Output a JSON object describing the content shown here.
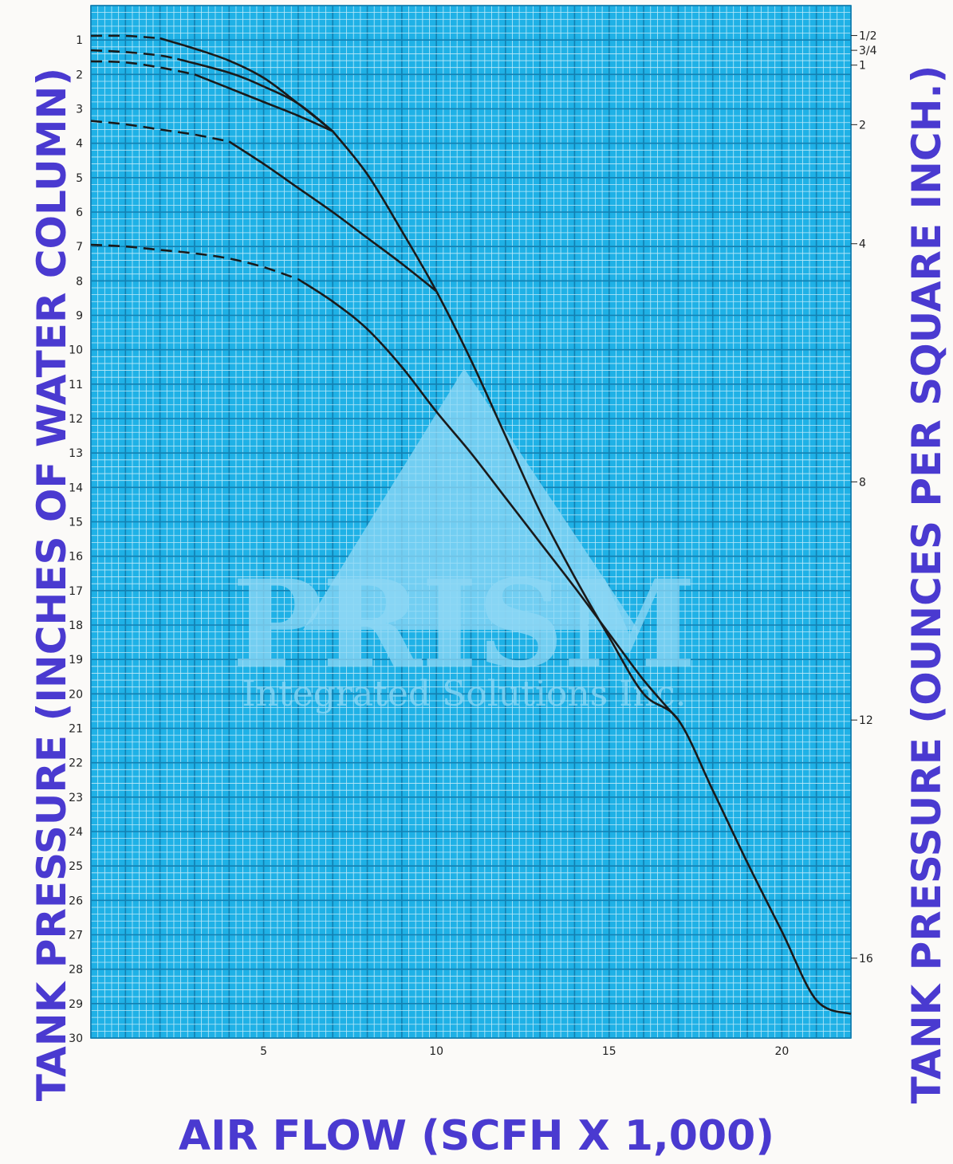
{
  "chart_data": {
    "type": "line",
    "xlabel": "AIR FLOW (SCFH X 1,000)",
    "ylabel_left": "TANK PRESSURE (INCHES OF WATER COLUMN)",
    "ylabel_right": "TANK PRESSURE (OUNCES PER SQUARE INCH.)",
    "xlim": [
      0,
      22
    ],
    "ylim_left": [
      0,
      30
    ],
    "y_inverted": true,
    "grid": true,
    "x_ticks": [
      5,
      10,
      15,
      20
    ],
    "y_ticks_left": [
      1,
      2,
      3,
      4,
      5,
      6,
      7,
      8,
      9,
      10,
      11,
      12,
      13,
      14,
      15,
      16,
      17,
      18,
      19,
      20,
      21,
      22,
      23,
      24,
      25,
      26,
      27,
      28,
      29,
      30
    ],
    "y_ticks_right": [
      {
        "label": "1/2",
        "inches_wc": 0.87
      },
      {
        "label": "3/4",
        "inches_wc": 1.3
      },
      {
        "label": "1",
        "inches_wc": 1.73
      },
      {
        "label": "2",
        "inches_wc": 3.46
      },
      {
        "label": "4",
        "inches_wc": 6.92
      },
      {
        "label": "8",
        "inches_wc": 13.84
      },
      {
        "label": "12",
        "inches_wc": 20.76
      },
      {
        "label": "16",
        "inches_wc": 27.68
      }
    ],
    "watermark": {
      "brand": "PRISM",
      "tagline": "Integrated Solutions Inc."
    },
    "series": [
      {
        "dashed": {
          "x": [
            0,
            1,
            2
          ],
          "y": [
            0.88,
            0.88,
            0.95
          ]
        },
        "solid": {
          "x": [
            2,
            3,
            4,
            5,
            6,
            7
          ],
          "y": [
            0.95,
            1.25,
            1.6,
            2.1,
            2.85,
            3.65
          ]
        }
      },
      {
        "dashed": {
          "x": [
            0,
            1,
            2,
            2.5
          ],
          "y": [
            1.3,
            1.35,
            1.45,
            1.55
          ]
        },
        "solid": {
          "x": [
            2.5,
            4,
            5,
            6,
            7
          ],
          "y": [
            1.55,
            1.95,
            2.35,
            2.85,
            3.65
          ]
        }
      },
      {
        "dashed": {
          "x": [
            0,
            1,
            2,
            3
          ],
          "y": [
            1.62,
            1.65,
            1.8,
            2.0
          ]
        },
        "solid": {
          "x": [
            3,
            4,
            5,
            6,
            7
          ],
          "y": [
            2.0,
            2.4,
            2.8,
            3.2,
            3.65
          ]
        }
      },
      {
        "dashed": {
          "x": [
            0,
            1,
            2,
            3,
            4
          ],
          "y": [
            3.35,
            3.45,
            3.6,
            3.75,
            3.95
          ]
        },
        "solid": {
          "x": [
            4,
            5,
            6,
            7,
            8,
            9,
            10
          ],
          "y": [
            3.95,
            4.6,
            5.3,
            6.0,
            6.75,
            7.5,
            8.3
          ]
        }
      },
      {
        "dashed": {
          "x": [
            0,
            1,
            2,
            3,
            4,
            5,
            6
          ],
          "y": [
            6.95,
            7.0,
            7.1,
            7.2,
            7.35,
            7.6,
            7.95
          ]
        },
        "solid": {
          "x": [
            6,
            7,
            8,
            9,
            10,
            11,
            12,
            13,
            14,
            15,
            16,
            17
          ],
          "y": [
            7.95,
            8.6,
            9.4,
            10.5,
            11.8,
            13.0,
            14.3,
            15.6,
            16.9,
            18.25,
            19.6,
            20.75
          ]
        }
      },
      {
        "dashed": {
          "x": [],
          "y": []
        },
        "solid": {
          "x": [
            7,
            8,
            9,
            10,
            11,
            12,
            13,
            14,
            15,
            16,
            17,
            18,
            19,
            20,
            21,
            22
          ],
          "y": [
            3.65,
            4.9,
            6.55,
            8.3,
            10.3,
            12.5,
            14.7,
            16.6,
            18.35,
            20.0,
            20.75,
            22.8,
            24.9,
            26.9,
            28.9,
            29.3
          ]
        }
      }
    ]
  }
}
